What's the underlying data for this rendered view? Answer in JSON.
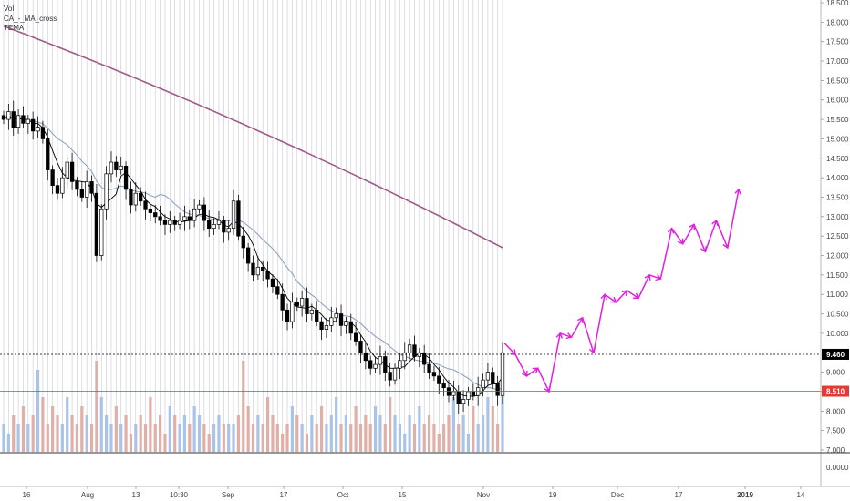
{
  "legend": {
    "vol": "Vol",
    "ma_cross": "CA_-_MA_cross",
    "tema": "TEMA"
  },
  "chart_data": {
    "type": "candlestick",
    "y_axis": {
      "ticks": [
        "18.500",
        "18.000",
        "17.500",
        "17.000",
        "16.500",
        "16.000",
        "15.500",
        "15.000",
        "14.500",
        "14.000",
        "13.500",
        "13.000",
        "12.500",
        "12.000",
        "11.500",
        "11.000",
        "10.500",
        "10.000",
        "9.500",
        "9.000",
        "8.500",
        "8.000",
        "7.500",
        "7.000"
      ],
      "ylim": [
        7.0,
        18.5
      ],
      "position": "right"
    },
    "volume_axis": {
      "ticks": [
        "0.0000"
      ]
    },
    "x_axis": {
      "ticks": [
        "16",
        "Aug",
        "13",
        "10:30",
        "Sep",
        "17",
        "Oct",
        "15",
        "Nov",
        "19",
        "Dec",
        "17",
        "2019",
        "14"
      ],
      "bold_ticks": [
        "2019"
      ]
    },
    "price_lines": [
      {
        "value": "9.460",
        "color": "#000000",
        "style": "dotted"
      },
      {
        "value": "8.510",
        "color": "#e53935",
        "style": "solid"
      }
    ],
    "overlays": [
      {
        "name": "long-ma",
        "color": "#a05a8a",
        "from": 17.9,
        "to": 12.2
      },
      {
        "name": "mid-ma",
        "color": "#8fa3c2"
      },
      {
        "name": "short-ma",
        "color": "#000000"
      }
    ],
    "candles_approx": [
      15.5,
      15.7,
      15.3,
      15.6,
      15.4,
      15.5,
      15.2,
      15.3,
      15.0,
      14.2,
      13.8,
      13.6,
      14.0,
      14.4,
      13.9,
      13.7,
      13.5,
      13.9,
      13.6,
      12.0,
      13.2,
      14.1,
      14.4,
      14.2,
      14.3,
      13.7,
      13.3,
      13.6,
      13.4,
      13.2,
      13.1,
      13.0,
      12.9,
      12.8,
      12.9,
      12.8,
      12.9,
      13.0,
      12.9,
      13.2,
      13.3,
      12.9,
      12.7,
      12.8,
      12.9,
      12.6,
      12.7,
      13.4,
      12.5,
      12.2,
      11.8,
      11.5,
      11.7,
      11.6,
      11.4,
      11.2,
      11.0,
      10.6,
      10.3,
      10.8,
      10.7,
      10.9,
      10.5,
      10.6,
      10.3,
      10.1,
      10.2,
      10.4,
      10.5,
      10.2,
      10.3,
      10.0,
      9.8,
      9.5,
      9.3,
      9.1,
      9.2,
      9.4,
      9.0,
      8.8,
      9.1,
      9.3,
      9.5,
      9.7,
      9.4,
      9.5,
      9.2,
      9.0,
      8.9,
      8.7,
      8.6,
      8.4,
      8.5,
      8.2,
      8.3,
      8.5,
      8.4,
      8.6,
      8.8,
      9.0,
      8.7,
      8.4,
      9.5
    ],
    "volumes_approx": [
      0.3,
      0.2,
      0.4,
      0.3,
      0.5,
      0.3,
      0.4,
      0.9,
      0.6,
      0.3,
      0.5,
      0.4,
      0.3,
      0.6,
      0.4,
      0.3,
      0.5,
      0.4,
      0.3,
      1.0,
      0.6,
      0.4,
      0.3,
      0.5,
      0.3,
      0.4,
      0.2,
      0.3,
      0.4,
      0.3,
      0.6,
      0.3,
      0.4,
      0.2,
      0.5,
      0.4,
      0.3,
      0.4,
      0.3,
      0.5,
      0.4,
      0.3,
      0.2,
      0.3,
      0.4,
      0.3,
      0.3,
      0.3,
      0.4,
      1.0,
      0.5,
      0.3,
      0.4,
      0.3,
      0.6,
      0.4,
      0.3,
      0.2,
      0.3,
      0.5,
      0.4,
      0.3,
      0.2,
      0.4,
      0.3,
      0.5,
      0.3,
      0.4,
      0.6,
      0.3,
      0.4,
      0.3,
      0.5,
      0.3,
      0.4,
      0.3,
      0.5,
      0.4,
      0.3,
      0.6,
      0.4,
      0.3,
      0.2,
      0.4,
      0.3,
      0.5,
      0.3,
      0.4,
      0.3,
      0.2,
      0.3,
      0.4,
      0.6,
      0.3,
      0.4,
      0.2,
      0.5,
      0.3,
      0.4,
      0.6,
      0.5,
      0.3,
      0.9
    ],
    "projection_path": [
      9.75,
      9.45,
      8.9,
      9.1,
      8.5,
      10.0,
      9.9,
      10.4,
      9.5,
      11.0,
      10.8,
      11.1,
      10.9,
      11.5,
      11.4,
      12.7,
      12.3,
      12.8,
      12.1,
      12.9,
      12.2,
      13.7
    ],
    "projection_color": "#e020e0"
  }
}
